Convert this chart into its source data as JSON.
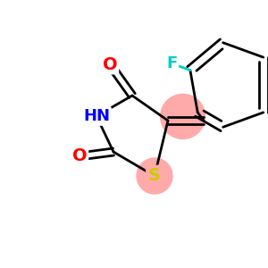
{
  "bg_color": "#ffffff",
  "atom_colors": {
    "C": "#000000",
    "N": "#0000ff",
    "O": "#ff0000",
    "S": "#cccc00",
    "F": "#00cccc"
  },
  "highlight_color": "#ffaaaa",
  "lw": 2.0,
  "S_highlight_r": 0.42,
  "CH_highlight_r": 0.5
}
